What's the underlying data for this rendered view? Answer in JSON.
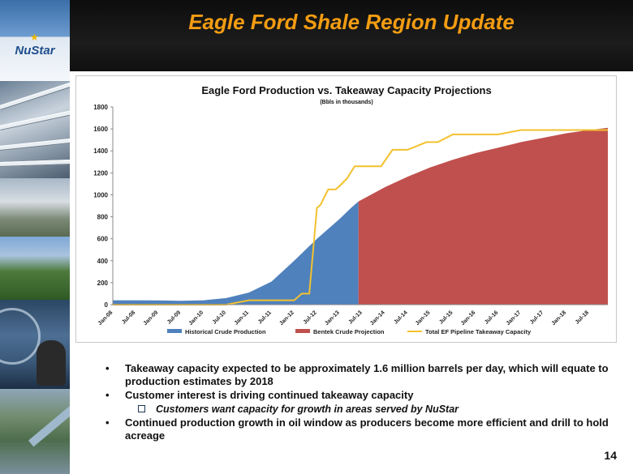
{
  "header": {
    "title": "Eagle Ford Shale Region Update",
    "logo_text": "NuStar"
  },
  "colors": {
    "title": "#F39C12",
    "historical": "#4F81BD",
    "projection": "#C0504D",
    "takeaway": "#F2C12E"
  },
  "chart_data": {
    "type": "area",
    "title": "Eagle Ford Production vs. Takeaway Capacity Projections",
    "subtitle": "(Bbls in thousands)",
    "xlabel": "",
    "ylabel": "",
    "ylim": [
      0,
      1800
    ],
    "yticks": [
      0,
      200,
      400,
      600,
      800,
      1000,
      1200,
      1400,
      1600,
      1800
    ],
    "categories": [
      "Jan-08",
      "Jul-08",
      "Jan-09",
      "Jul-09",
      "Jan-10",
      "Jul-10",
      "Jan-11",
      "Jul-11",
      "Jan-12",
      "Jul-12",
      "Jan-13",
      "Jul-13",
      "Jan-14",
      "Jul-14",
      "Jan-15",
      "Jul-15",
      "Jan-16",
      "Jul-16",
      "Jan-17",
      "Jul-17",
      "Jan-18",
      "Jul-18"
    ],
    "grid": false,
    "legend_position": "bottom",
    "series": [
      {
        "name": "Historical Crude Production",
        "style": "area",
        "x": [
          "Jan-08",
          "Jul-08",
          "Jan-09",
          "Jul-09",
          "Jan-10",
          "Jul-10",
          "Jan-11",
          "Jul-11",
          "Jan-12",
          "Jul-12",
          "Jan-13",
          "Apr-13",
          "Jun-13"
        ],
        "values": [
          40,
          40,
          38,
          35,
          40,
          60,
          110,
          210,
          400,
          600,
          780,
          880,
          940
        ]
      },
      {
        "name": "Bentek Crude Projection",
        "style": "area",
        "x": [
          "Jun-13",
          "Jan-14",
          "Jul-14",
          "Jan-15",
          "Jul-15",
          "Jan-16",
          "Jul-16",
          "Jan-17",
          "Jul-17",
          "Jan-18",
          "Jul-18",
          "Dec-18"
        ],
        "values": [
          940,
          1070,
          1165,
          1250,
          1320,
          1380,
          1430,
          1480,
          1520,
          1560,
          1590,
          1610
        ]
      },
      {
        "name": "Total EF Pipeline Takeaway Capacity",
        "style": "line",
        "x": [
          "Jan-08",
          "Jul-10",
          "Jan-11",
          "Jul-11",
          "Jan-12",
          "Mar-12",
          "May-12",
          "Jul-12",
          "Aug-12",
          "Oct-12",
          "Dec-12",
          "Jan-13",
          "Mar-13",
          "May-13",
          "Jul-13",
          "Dec-13",
          "Mar-14",
          "Jul-14",
          "Dec-14",
          "Mar-15",
          "Jul-15",
          "Dec-15",
          "Jul-16",
          "Jan-17",
          "Jul-17",
          "Jan-18",
          "Jul-18",
          "Dec-18"
        ],
        "values": [
          0,
          0,
          40,
          40,
          40,
          100,
          100,
          880,
          910,
          1050,
          1050,
          1080,
          1150,
          1260,
          1260,
          1260,
          1410,
          1410,
          1480,
          1480,
          1550,
          1550,
          1550,
          1590,
          1590,
          1590,
          1590,
          1590
        ]
      }
    ]
  },
  "bullets": [
    {
      "level": 1,
      "text": "Takeaway capacity expected to be approximately 1.6 million barrels per day, which will equate to production estimates by 2018"
    },
    {
      "level": 1,
      "text": "Customer interest is driving continued takeaway capacity"
    },
    {
      "level": 2,
      "text": "Customers want capacity for growth in areas served by NuStar"
    },
    {
      "level": 1,
      "text": "Continued production growth in oil window as producers become more efficient and drill to hold acreage"
    }
  ],
  "page_number": "14"
}
